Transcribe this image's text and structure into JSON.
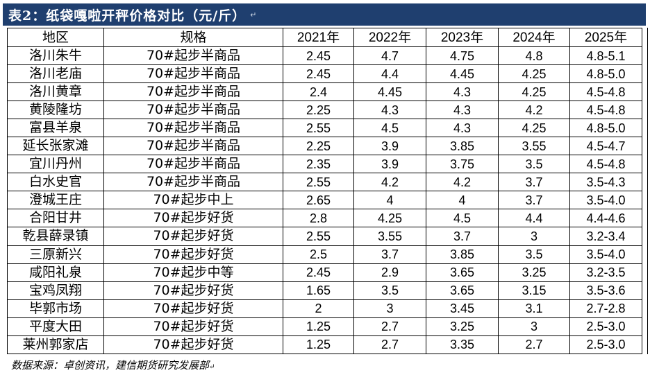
{
  "title": "表2：纸袋嘎啦开秤价格对比（元/斤）",
  "title_mark": "↵",
  "headers": [
    "地区",
    "规格",
    "2021年",
    "2022年",
    "2023年",
    "2024年",
    "2025年"
  ],
  "rows": [
    [
      "洛川朱牛",
      "70#起步半商品",
      "2.45",
      "4.7",
      "4.75",
      "4.8",
      "4.8-5.1"
    ],
    [
      "洛川老庙",
      "70#起步半商品",
      "2.45",
      "4.4",
      "4.45",
      "4.25",
      "4.8-5.0"
    ],
    [
      "洛川黄章",
      "70#起步半商品",
      "2.4",
      "4.45",
      "4.3",
      "4.25",
      "4.5-4.8"
    ],
    [
      "黄陵隆坊",
      "70#起步半商品",
      "2.25",
      "4.3",
      "4.3",
      "4.2",
      "4.5-4.8"
    ],
    [
      "富县羊泉",
      "70#起步半商品",
      "2.55",
      "4.5",
      "4.3",
      "4.25",
      "4.8-5.0"
    ],
    [
      "延长张家滩",
      "70#起步半商品",
      "2.25",
      "3.9",
      "3.85",
      "3.55",
      "4.5-4.7"
    ],
    [
      "宜川丹州",
      "70#起步半商品",
      "2.35",
      "3.9",
      "3.75",
      "3.5",
      "4.5-4.8"
    ],
    [
      "白水史官",
      "70#起步半商品",
      "2.55",
      "4.2",
      "4.2",
      "3.7",
      "3.5-4.3"
    ],
    [
      "澄城王庄",
      "70#起步中上",
      "2.65",
      "4",
      "4",
      "3.7",
      "3.5-4.0"
    ],
    [
      "合阳甘井",
      "70#起步好货",
      "2.8",
      "4.25",
      "4.5",
      "4.4",
      "4.4-4.6"
    ],
    [
      "乾县薛录镇",
      "70#起步好货",
      "2.55",
      "3.55",
      "3.7",
      "3",
      "3.2-3.4"
    ],
    [
      "三原新兴",
      "70#起步好货",
      "2.5",
      "3.7",
      "3.85",
      "3.5",
      "3.5-4.0"
    ],
    [
      "咸阳礼泉",
      "70#起步中等",
      "2.45",
      "2.9",
      "3.65",
      "3.25",
      "3.2-3.5"
    ],
    [
      "宝鸡凤翔",
      "70#起步好货",
      "1.65",
      "3.5",
      "3.65",
      "3.15",
      "3.5-3.6"
    ],
    [
      "毕郭市场",
      "70#起步好货",
      "2",
      "3",
      "3.45",
      "3.1",
      "2.7-2.8"
    ],
    [
      "平度大田",
      "70#起步好货",
      "1.25",
      "2.7",
      "3.25",
      "3",
      "2.5-3.0"
    ],
    [
      "莱州郭家店",
      "70#起步好货",
      "1.25",
      "2.7",
      "3.35",
      "2.7",
      "2.5-3.0"
    ]
  ],
  "footer": "数据来源：卓创资讯，建信期货研究发展部",
  "footer_mark": "↵",
  "colors": {
    "title_bg": "#1f3f6f",
    "title_fg": "#ffffff",
    "border": "#000000"
  }
}
